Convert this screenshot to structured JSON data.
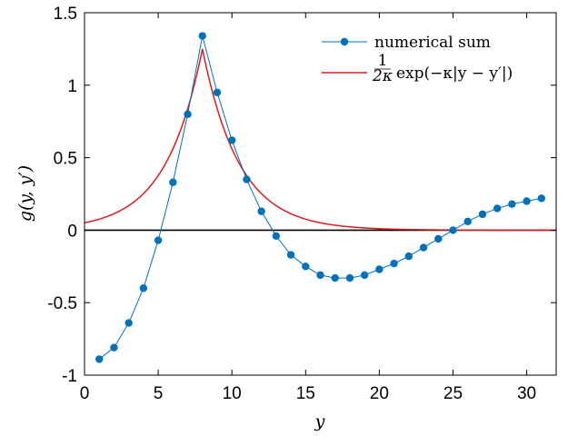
{
  "chart_data": {
    "type": "line",
    "xlabel": "y",
    "ylabel": "g(y, y′)",
    "xlim": [
      0,
      32
    ],
    "ylim": [
      -1,
      1.5
    ],
    "xticks": [
      0,
      5,
      10,
      15,
      20,
      25,
      30
    ],
    "yticks": [
      -1,
      -0.5,
      0,
      0.5,
      1,
      1.5
    ],
    "xtick_labels": [
      "0",
      "5",
      "10",
      "15",
      "20",
      "25",
      "30"
    ],
    "ytick_labels": [
      "-1",
      "-0.5",
      "0",
      "0.5",
      "1",
      "1.5"
    ],
    "grid": false,
    "legend_position": "top-right",
    "reference_line_y": 0,
    "series": [
      {
        "name": "numerical sum",
        "style": "line-with-markers",
        "color": "#0072BD",
        "x": [
          1,
          2,
          3,
          4,
          5,
          6,
          7,
          8,
          9,
          10,
          11,
          12,
          13,
          14,
          15,
          16,
          17,
          18,
          19,
          20,
          21,
          22,
          23,
          24,
          25,
          26,
          27,
          28,
          29,
          30,
          31
        ],
        "y": [
          -0.89,
          -0.81,
          -0.64,
          -0.4,
          -0.07,
          0.33,
          0.8,
          1.34,
          0.95,
          0.62,
          0.35,
          0.13,
          -0.04,
          -0.17,
          -0.25,
          -0.31,
          -0.33,
          -0.33,
          -0.31,
          -0.27,
          -0.23,
          -0.18,
          -0.12,
          -0.06,
          0.0,
          0.06,
          0.11,
          0.15,
          0.18,
          0.2,
          0.22
        ]
      },
      {
        "name_parts": {
          "fraction_numerator": "1",
          "fraction_denominator": "2κ",
          "expression": "exp(−κ|y − y′|)"
        },
        "style": "line",
        "color": "#E31A1C",
        "function": "exp_decay",
        "peak_x": 8,
        "peak_y": 1.25,
        "kappa": 0.4,
        "x_range": [
          0,
          32
        ]
      }
    ]
  }
}
